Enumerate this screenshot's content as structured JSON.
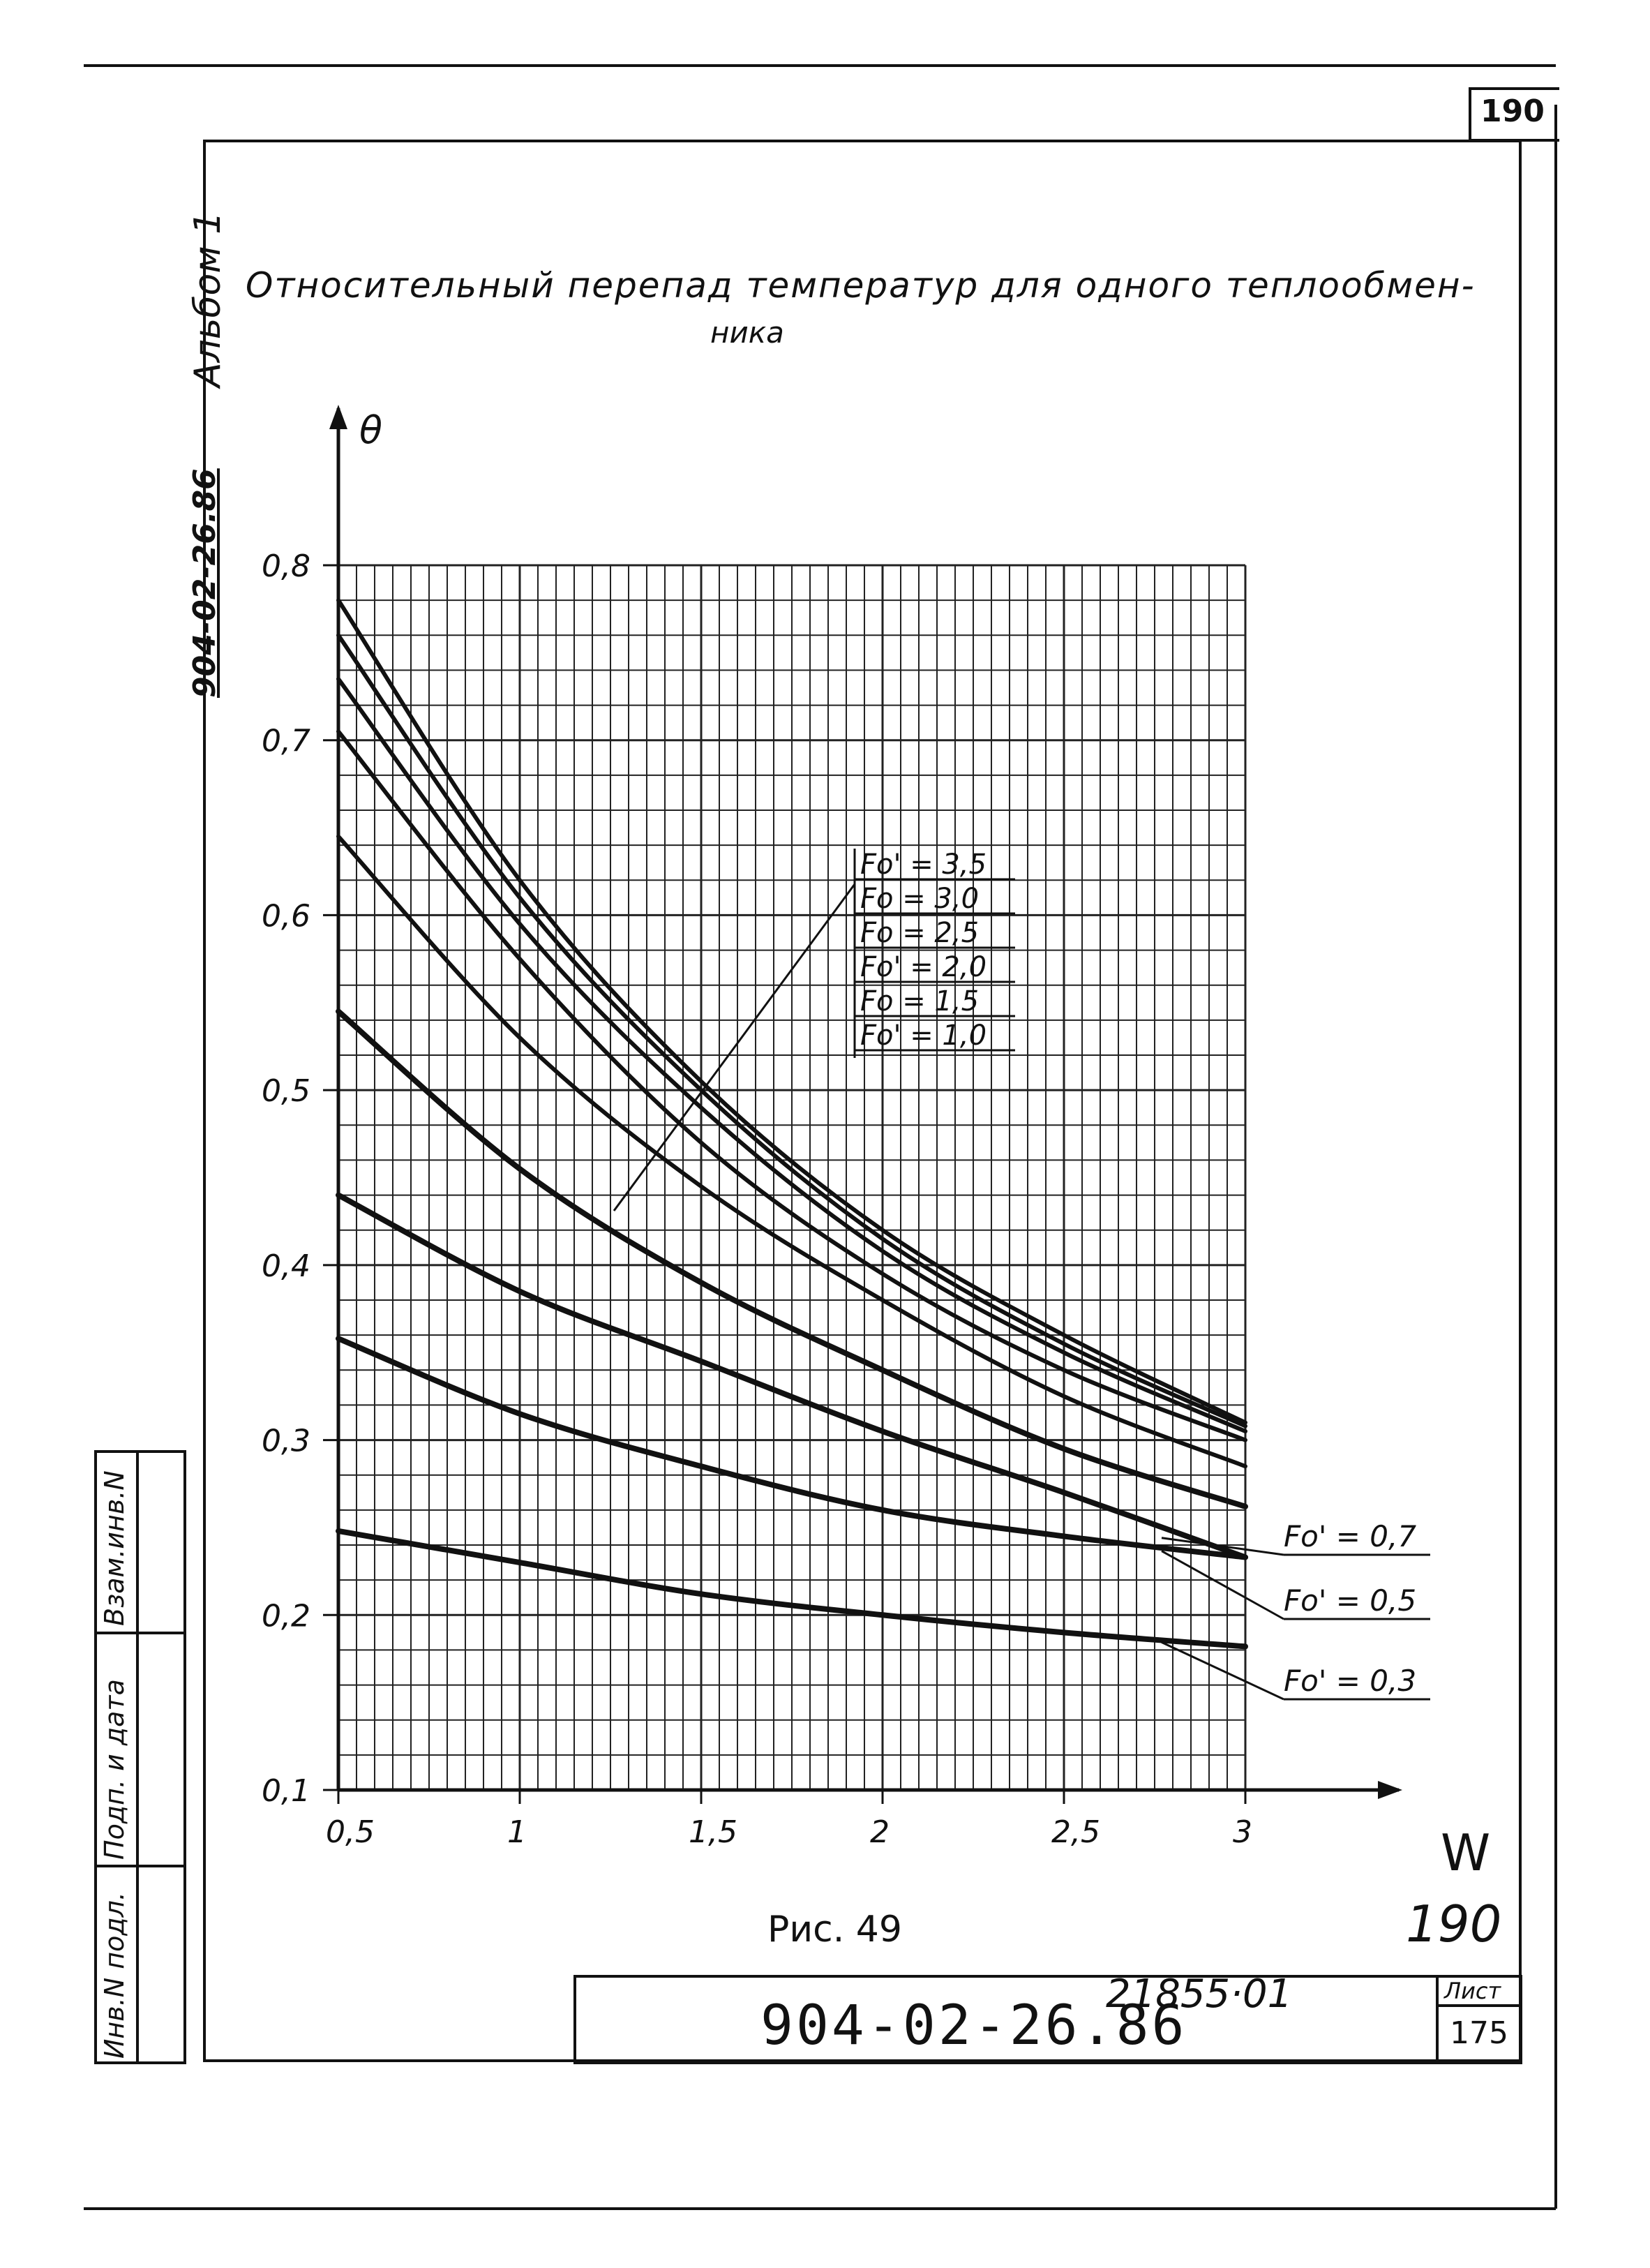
{
  "sheet": {
    "corner_number": "190",
    "album_label": "Альбом 1",
    "doc_code_side": "904-02-26.86",
    "title_line1": "Относительный перепад температур для одного теплообмен-",
    "title_line2": "ника",
    "figure_caption": "Рис. 49",
    "handwritten_number": "190",
    "inventory_stamp": "21855·01",
    "doc_code": "904-02-26.86",
    "sheet_label": "Лист",
    "sheet_number": "175",
    "side_stamp": {
      "cell_1": "Инв.N подл.",
      "cell_2": "Подп. и дата",
      "cell_3": "Взам.инв.N"
    }
  },
  "chart_data": {
    "type": "line",
    "ylabel": "θ",
    "xlabel": "W",
    "xlim": [
      0.5,
      3.0
    ],
    "ylim": [
      0.1,
      0.8
    ],
    "grid": true,
    "x_ticks": [
      "0,5",
      "1",
      "1,5",
      "2",
      "2,5",
      "3"
    ],
    "y_ticks": [
      "0,1",
      "0,2",
      "0,3",
      "0,4",
      "0,5",
      "0,6",
      "0,7",
      "0,8"
    ],
    "x": [
      0.5,
      1.0,
      1.5,
      2.0,
      2.5,
      3.0
    ],
    "series": [
      {
        "name": "Fo' = 3,5",
        "values": [
          0.78,
          0.62,
          0.505,
          0.42,
          0.36,
          0.31
        ]
      },
      {
        "name": "Fo = 3,0",
        "values": [
          0.76,
          0.61,
          0.5,
          0.415,
          0.355,
          0.308
        ]
      },
      {
        "name": "Fo = 2,5",
        "values": [
          0.735,
          0.595,
          0.49,
          0.408,
          0.35,
          0.305
        ]
      },
      {
        "name": "Fo' = 2,0",
        "values": [
          0.705,
          0.575,
          0.47,
          0.395,
          0.34,
          0.3
        ]
      },
      {
        "name": "Fo = 1,5",
        "values": [
          0.645,
          0.53,
          0.445,
          0.38,
          0.325,
          0.285
        ]
      },
      {
        "name": "Fo' = 1,0",
        "values": [
          0.545,
          0.455,
          0.39,
          0.34,
          0.295,
          0.262
        ]
      },
      {
        "name": "Fo' = 0,7",
        "values": [
          0.44,
          0.385,
          0.345,
          0.305,
          0.27,
          0.233
        ]
      },
      {
        "name": "Fo' = 0,5",
        "values": [
          0.358,
          0.315,
          0.285,
          0.26,
          0.245,
          0.233
        ]
      },
      {
        "name": "Fo' = 0,3",
        "values": [
          0.248,
          0.23,
          0.212,
          0.2,
          0.19,
          0.182
        ]
      }
    ],
    "legend_group": [
      "Fo' = 3,5",
      "Fo = 3,0",
      "Fo = 2,5",
      "Fo' = 2,0",
      "Fo = 1,5",
      "Fo' = 1,0"
    ],
    "legend_side": [
      {
        "label": "Fo' = 0,7",
        "series": 6
      },
      {
        "label": "Fo' = 0,5",
        "series": 7
      },
      {
        "label": "Fo' = 0,3",
        "series": 8
      }
    ]
  }
}
